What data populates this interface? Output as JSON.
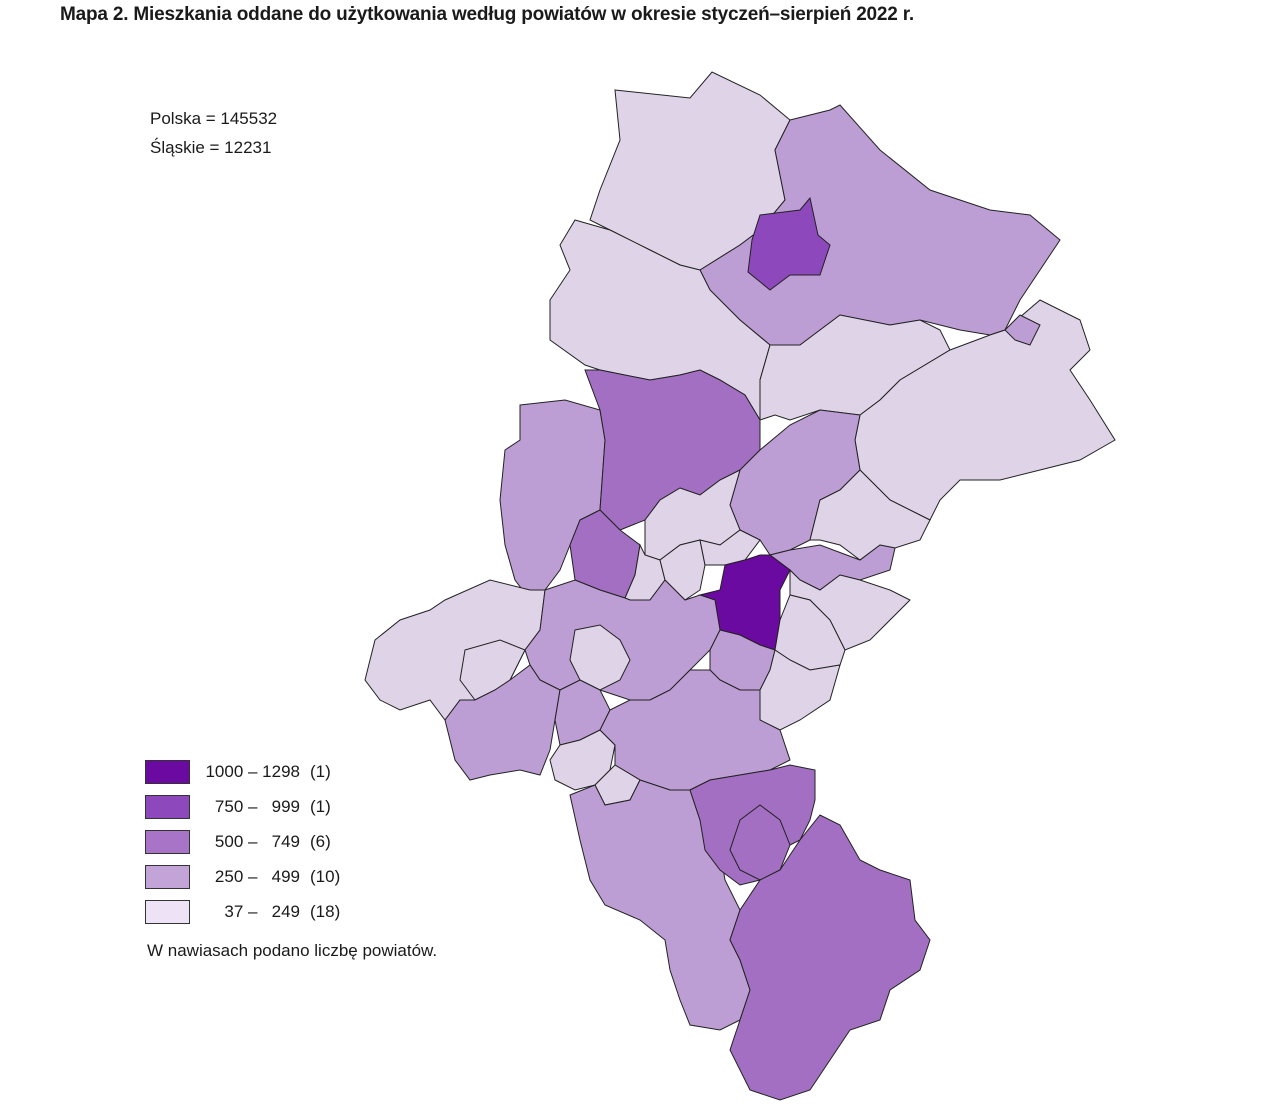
{
  "title": "Mapa 2. Mieszkania oddane do użytkowania według powiatów w okresie styczeń–sierpień 2022 r.",
  "stats": {
    "poland": "Polska = 145532",
    "silesia": "Śląskie = 12231"
  },
  "legend": {
    "items": [
      {
        "range": "1000 – 1298",
        "count": "(1)",
        "color": "#6a0aa0"
      },
      {
        "range": "750 –   999",
        "count": "(1)",
        "color": "#8d48bb"
      },
      {
        "range": "500 –   749",
        "count": "(6)",
        "color": "#a774c8"
      },
      {
        "range": "250 –   499",
        "count": "(10)",
        "color": "#c3a4d8"
      },
      {
        "range": "37 –   249",
        "count": "(18)",
        "color": "#eee2f6"
      }
    ],
    "note": "W nawiasach podano liczbę powiatów."
  },
  "colors": {
    "c1": "#6a0aa0",
    "c2": "#8d48bb",
    "c3": "#a36fc2",
    "c4": "#bd9ed4",
    "c5": "#dfd3e8",
    "border": "#222222"
  }
}
